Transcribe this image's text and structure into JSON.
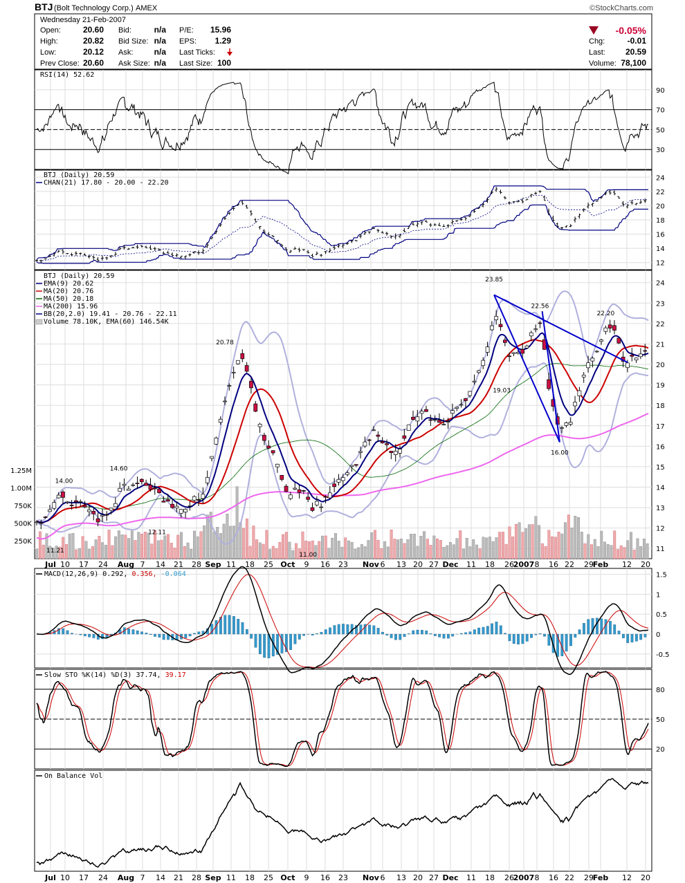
{
  "header": {
    "symbol": "BTJ",
    "company": "(Bolt Technology Corp.)",
    "exchange": "AMEX",
    "date": "Wednesday  21-Feb-2007",
    "brand": "©StockCharts.com",
    "fields": [
      {
        "label": "Open:",
        "value": "20.60"
      },
      {
        "label": "High:",
        "value": "20.82"
      },
      {
        "label": "Low:",
        "value": "20.12"
      },
      {
        "label": "Prev Close:",
        "value": "20.60"
      },
      {
        "label": "Bid:",
        "value": "n/a"
      },
      {
        "label": "Bid Size:",
        "value": "n/a"
      },
      {
        "label": "Ask:",
        "value": "n/a"
      },
      {
        "label": "Ask Size:",
        "value": "n/a"
      },
      {
        "label": "P/E:",
        "value": "15.96"
      },
      {
        "label": "EPS:",
        "value": "1.29"
      },
      {
        "label": "Last Ticks:",
        "value": ""
      },
      {
        "label": "Last Size:",
        "value": "100"
      }
    ],
    "change_pct": "-0.05%",
    "right_fields": [
      {
        "label": "Chg:",
        "value": "-0.01"
      },
      {
        "label": "Last:",
        "value": "20.59"
      },
      {
        "label": "Volume:",
        "value": "78,100"
      }
    ]
  },
  "colors": {
    "up": "#ffffff",
    "down": "#cc1144",
    "ema9": "#000080",
    "ma20": "#cc0000",
    "ma50": "#006600",
    "ma200": "#ee66ee",
    "bb": "#b0b0dd",
    "macd_hist": "#3399cc",
    "rsi_fill": "#558855",
    "trend": "#0000cc"
  },
  "chart_data": [
    {
      "type": "line",
      "title": "RSI(14) 52.62",
      "yticks": [
        30,
        50,
        70,
        90
      ],
      "ylim": [
        10,
        110
      ],
      "overbought": 70,
      "oversold": 30,
      "seed_label": "rsi"
    },
    {
      "type": "candlestick",
      "title": "BTJ (Daily) 20.59",
      "legend": [
        "CHAN(21) 17.80 - 20.00 - 22.20"
      ],
      "yticks": [
        12,
        14,
        16,
        18,
        20,
        22,
        24
      ],
      "ylim": [
        11,
        25
      ]
    },
    {
      "type": "candlestick",
      "title": "BTJ (Daily) 20.59",
      "legend": [
        "EMA(9) 20.62",
        "MA(20) 20.76",
        "MA(50) 20.18",
        "MA(200) 15.96",
        "BB(20,2.0) 19.41 - 20.76 - 22.11",
        "Volume 78.10K, EMA(60) 146.54K"
      ],
      "yticks": [
        11,
        12,
        13,
        14,
        15,
        16,
        17,
        18,
        19,
        20,
        21,
        22,
        23,
        24
      ],
      "volume_ticks": [
        "250K",
        "500K",
        "750K",
        "1.00M",
        "1.25M"
      ],
      "ylim": [
        10.5,
        24.6
      ],
      "annotations": [
        {
          "text": "11.21",
          "i": 17,
          "value": 11.21,
          "pos": "below"
        },
        {
          "text": "14.00",
          "i": 25,
          "value": 14.0,
          "pos": "above"
        },
        {
          "text": "14.60",
          "i": 75,
          "value": 14.6,
          "pos": "above"
        },
        {
          "text": "12.11",
          "i": 110,
          "value": 12.11,
          "pos": "below"
        },
        {
          "text": "20.78",
          "i": 172,
          "value": 20.78,
          "pos": "above"
        },
        {
          "text": "11.00",
          "i": 248,
          "value": 11.0,
          "pos": "below"
        },
        {
          "text": "23.85",
          "i": 418,
          "value": 23.85,
          "pos": "above"
        },
        {
          "text": "19.03",
          "i": 425,
          "value": 19.03,
          "pos": "below"
        },
        {
          "text": "22.56",
          "i": 460,
          "value": 22.56,
          "pos": "above"
        },
        {
          "text": "16.00",
          "i": 478,
          "value": 16.0,
          "pos": "below"
        },
        {
          "text": "22.20",
          "i": 520,
          "value": 22.2,
          "pos": "above"
        }
      ],
      "trendlines": [
        {
          "from": [
            418,
            23.4
          ],
          "to": [
            540,
            20.1
          ]
        },
        {
          "from": [
            418,
            23.4
          ],
          "to": [
            478,
            16.2
          ]
        },
        {
          "from": [
            478,
            16.2
          ],
          "to": [
            462,
            22.6
          ]
        }
      ]
    },
    {
      "type": "bar",
      "title": "MACD(12,26,9) 0.292, 0.356, -0.064",
      "legend_parts": [
        "MACD(12,26,9) 0.292,",
        "0.356,",
        "-0.064"
      ],
      "yticks": [
        -0.5,
        0.0,
        0.5,
        1.0,
        1.5
      ],
      "ylim": [
        -0.85,
        1.65
      ]
    },
    {
      "type": "line",
      "title": "Slow STO %K(14) %D(3) 37.74, 39.17",
      "legend_parts": [
        "Slow STO %K(14) %D(3) 37.74,",
        "39.17"
      ],
      "yticks": [
        20,
        50,
        80
      ],
      "ylim": [
        0,
        100
      ]
    },
    {
      "type": "line",
      "title": "On Balance Vol",
      "yticks": [],
      "ylim": [
        0,
        100
      ]
    }
  ],
  "xaxis": {
    "labels": [
      {
        "text": "Jul",
        "x": 73,
        "bold": true
      },
      {
        "text": "10",
        "x": 94
      },
      {
        "text": "17",
        "x": 121
      },
      {
        "text": "24",
        "x": 149
      },
      {
        "text": "Aug",
        "x": 182,
        "bold": true
      },
      {
        "text": "7",
        "x": 206
      },
      {
        "text": "14",
        "x": 232
      },
      {
        "text": "21",
        "x": 258
      },
      {
        "text": "28",
        "x": 284
      },
      {
        "text": "Sep",
        "x": 308,
        "bold": true
      },
      {
        "text": "11",
        "x": 334
      },
      {
        "text": "18",
        "x": 361
      },
      {
        "text": "25",
        "x": 388
      },
      {
        "text": "Oct",
        "x": 416,
        "bold": true
      },
      {
        "text": "9",
        "x": 443
      },
      {
        "text": "16",
        "x": 470
      },
      {
        "text": "23",
        "x": 496
      },
      {
        "text": "Nov",
        "x": 536,
        "bold": true
      },
      {
        "text": "6",
        "x": 553
      },
      {
        "text": "13",
        "x": 580
      },
      {
        "text": "20",
        "x": 604
      },
      {
        "text": "27",
        "x": 627
      },
      {
        "text": "Dec",
        "x": 651,
        "bold": true
      },
      {
        "text": "11",
        "x": 681
      },
      {
        "text": "18",
        "x": 708
      },
      {
        "text": "26",
        "x": 736
      },
      {
        "text": "2007",
        "x": 757,
        "bold": true
      },
      {
        "text": "8",
        "x": 776
      },
      {
        "text": "16",
        "x": 800
      },
      {
        "text": "22",
        "x": 823
      },
      {
        "text": "29",
        "x": 851
      },
      {
        "text": "Feb",
        "x": 868,
        "bold": true
      },
      {
        "text": "12",
        "x": 906
      },
      {
        "text": "20",
        "x": 933
      }
    ]
  },
  "price_path": [
    [
      0,
      12.3
    ],
    [
      10,
      12.6
    ],
    [
      20,
      13.8
    ],
    [
      30,
      13.2
    ],
    [
      40,
      13.4
    ],
    [
      50,
      12.8
    ],
    [
      62,
      12.5
    ],
    [
      72,
      13.4
    ],
    [
      85,
      14.1
    ],
    [
      95,
      14.3
    ],
    [
      110,
      13.8
    ],
    [
      120,
      13.4
    ],
    [
      130,
      13.2
    ],
    [
      140,
      13.3
    ],
    [
      150,
      13.6
    ],
    [
      160,
      15.5
    ],
    [
      172,
      18.0
    ],
    [
      180,
      19.3
    ],
    [
      186,
      20.3
    ],
    [
      192,
      19.6
    ],
    [
      198,
      18.2
    ],
    [
      206,
      16.8
    ],
    [
      214,
      15.8
    ],
    [
      222,
      14.8
    ],
    [
      230,
      13.7
    ],
    [
      238,
      14.2
    ],
    [
      246,
      13.9
    ],
    [
      252,
      12.8
    ],
    [
      258,
      13.1
    ],
    [
      266,
      13.6
    ],
    [
      276,
      14.2
    ],
    [
      286,
      14.8
    ],
    [
      296,
      15.6
    ],
    [
      306,
      16.8
    ],
    [
      316,
      16.4
    ],
    [
      326,
      15.9
    ],
    [
      336,
      16.4
    ],
    [
      346,
      17.4
    ],
    [
      356,
      17.8
    ],
    [
      366,
      17.4
    ],
    [
      376,
      17.6
    ],
    [
      386,
      17.9
    ],
    [
      394,
      18.4
    ],
    [
      402,
      19.6
    ],
    [
      410,
      20.6
    ],
    [
      418,
      22.5
    ],
    [
      424,
      21.8
    ],
    [
      430,
      20.3
    ],
    [
      438,
      20.6
    ],
    [
      448,
      21.1
    ],
    [
      456,
      21.9
    ],
    [
      462,
      22.0
    ],
    [
      468,
      19.2
    ],
    [
      474,
      17.8
    ],
    [
      480,
      16.8
    ],
    [
      486,
      17.0
    ],
    [
      494,
      18.2
    ],
    [
      500,
      19.5
    ],
    [
      508,
      20.3
    ],
    [
      514,
      20.8
    ],
    [
      520,
      21.5
    ],
    [
      526,
      21.8
    ],
    [
      532,
      21.2
    ],
    [
      538,
      20.2
    ],
    [
      544,
      20.8
    ],
    [
      550,
      20.6
    ],
    [
      558,
      20.6
    ]
  ]
}
